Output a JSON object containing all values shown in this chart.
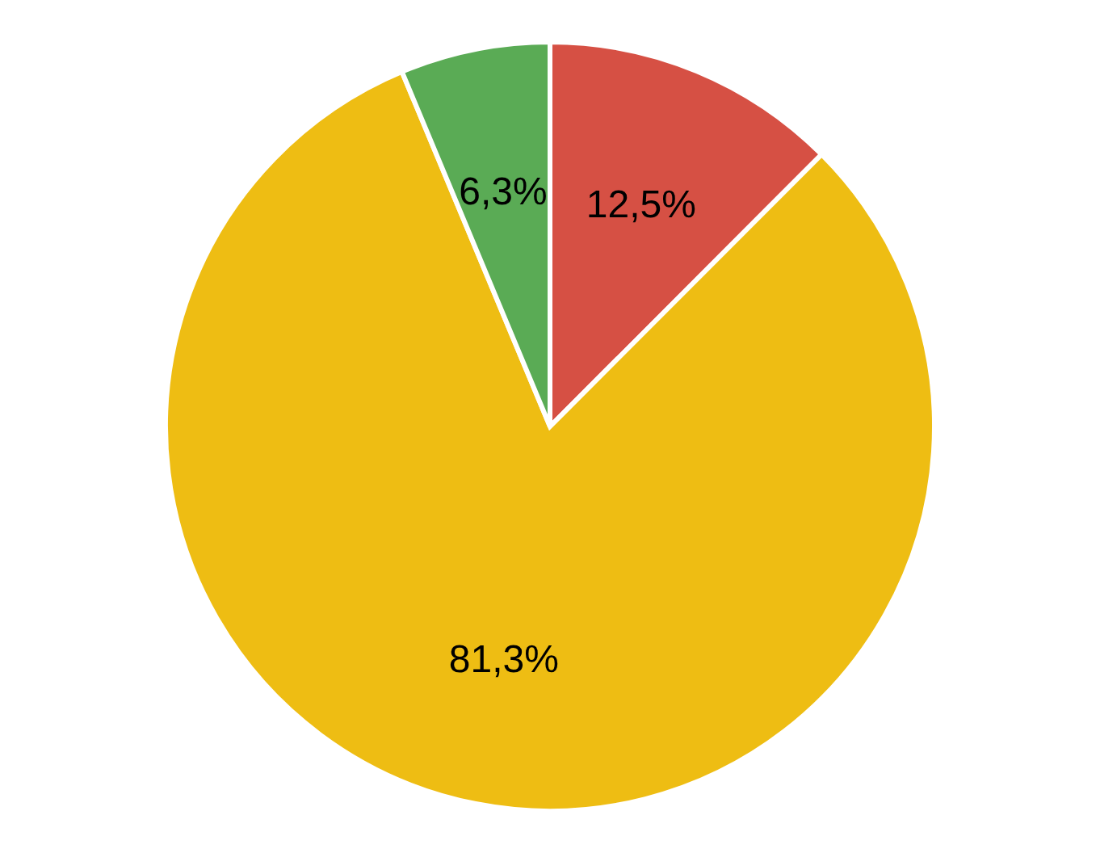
{
  "chart_data": {
    "type": "pie",
    "categories": [
      null,
      null,
      null
    ],
    "values": [
      12.5,
      81.3,
      6.3
    ],
    "colors": [
      "#d65044",
      "#eebd13",
      "#5aab55"
    ],
    "value_labels": [
      "12,5%",
      "81,3%",
      "6,3%"
    ]
  }
}
